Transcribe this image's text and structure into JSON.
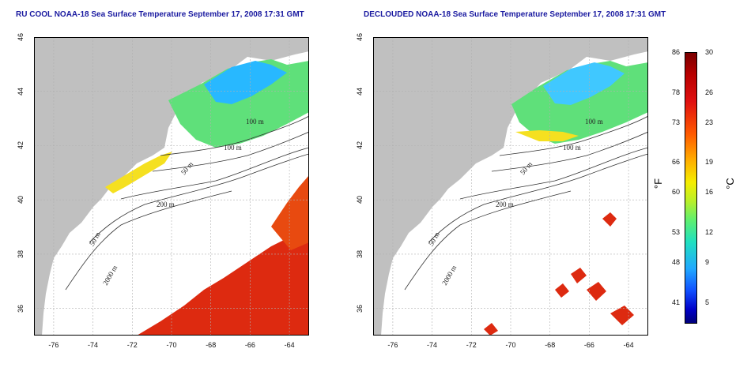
{
  "left_panel": {
    "title": "RU COOL NOAA-18 Sea Surface Temperature September 17, 2008 17:31 GMT"
  },
  "right_panel": {
    "title": "DECLOUDED NOAA-18 Sea Surface Temperature September 17, 2008 17:31 GMT"
  },
  "axes": {
    "lon_ticks": [
      "-76",
      "-74",
      "-72",
      "-70",
      "-68",
      "-66",
      "-64"
    ],
    "lat_ticks": [
      "36",
      "38",
      "40",
      "42",
      "44",
      "46"
    ],
    "lon_range": [
      -77,
      -63
    ],
    "lat_range": [
      35,
      46
    ]
  },
  "contour_labels": [
    "100 m",
    "100 m",
    "50 m",
    "200 m",
    "50 m",
    "2000 m"
  ],
  "colorbar": {
    "fahrenheit_ticks": [
      "86",
      "78",
      "73",
      "66",
      "60",
      "53",
      "48",
      "41"
    ],
    "celsius_ticks": [
      "30",
      "26",
      "23",
      "19",
      "16",
      "12",
      "9",
      "5"
    ],
    "unit_f": "°F",
    "unit_c": "°C"
  },
  "colors": {
    "land": "#c0c0c0",
    "ocean_nodata": "#ffffff",
    "title": "#1a1aa0"
  }
}
